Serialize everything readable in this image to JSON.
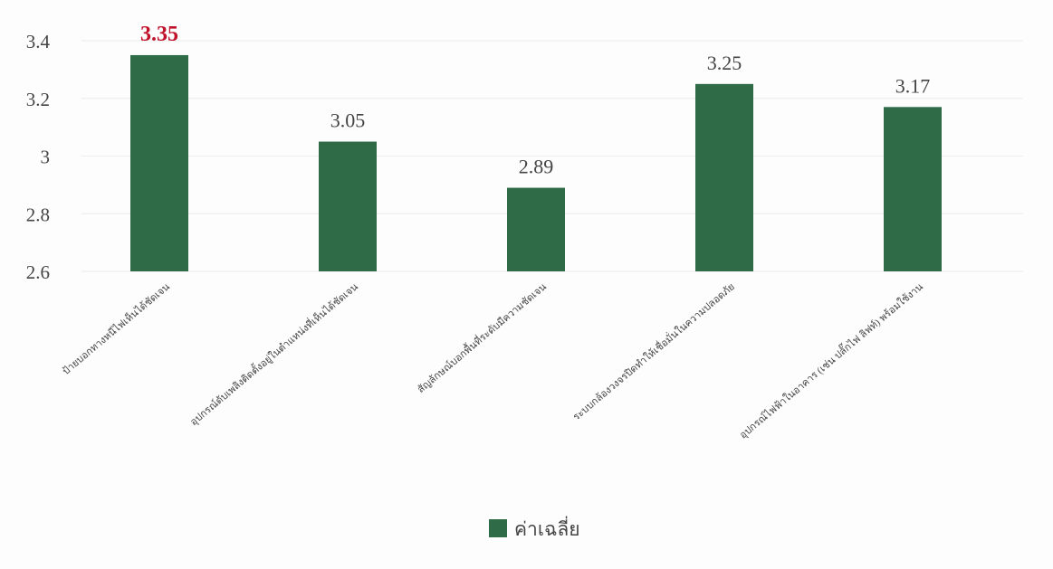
{
  "chart_data": {
    "type": "bar",
    "categories": [
      "ป้ายบอกทางหนีไฟเห็นได้ชัดเจน",
      "อุปกรณ์ดับเพลิงติดตั้งอยู่ในตำแหน่งที่เห็นได้ชัดเจน",
      "สัญลักษณ์บอกพื้นที่ระดับมีความชัดเจน",
      "ระบบกล้องวงจรปิดทำให้เชื่อมั่นในความปลอดภัย",
      "อุปกรณ์ไฟฟ้าในอาคาร (เช่น ปลั๊กไฟ ลิฟท์) พร้อมใช้งาน"
    ],
    "series": [
      {
        "name": "ค่าเฉลี่ย",
        "values": [
          3.35,
          3.05,
          2.89,
          3.25,
          3.17
        ]
      }
    ],
    "value_labels": [
      "3.35",
      "3.05",
      "2.89",
      "3.25",
      "3.17"
    ],
    "highlight_index": 0,
    "ylim": [
      2.6,
      3.4
    ],
    "yticks": [
      2.6,
      2.8,
      3,
      3.2,
      3.4
    ],
    "ytick_labels": [
      "2.6",
      "2.8",
      "3",
      "3.2",
      "3.4"
    ],
    "grid": true,
    "legend_position": "bottom",
    "colors": {
      "bar": "#2e6b46",
      "highlight_label": "#c0122b",
      "label": "#444444",
      "grid": "#ececec"
    }
  }
}
